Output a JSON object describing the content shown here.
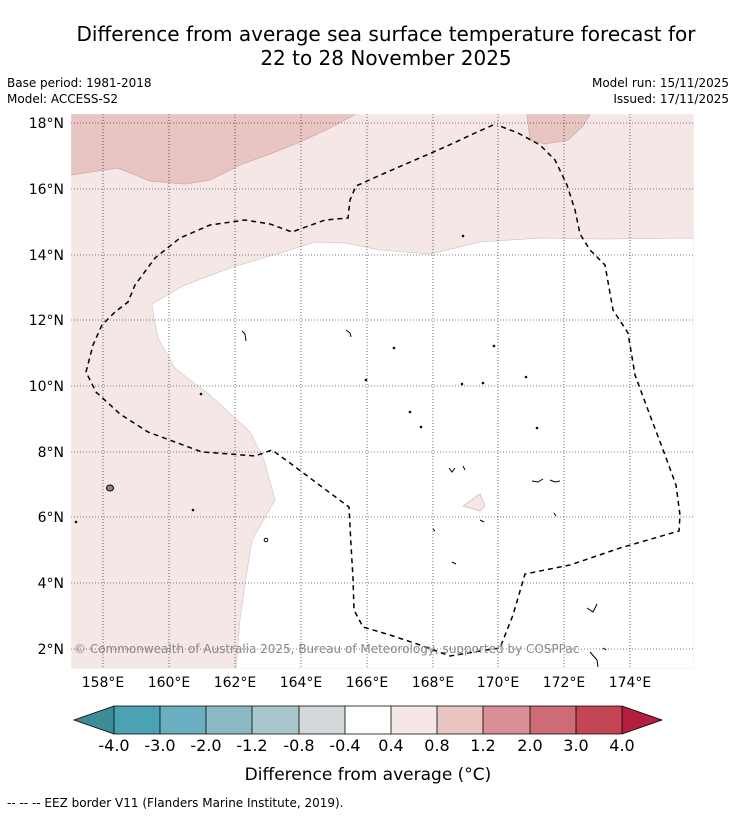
{
  "title_line1": "Difference from average sea surface temperature forecast for",
  "title_line2": "22 to 28 November 2025",
  "base_period": "Base period: 1981-2018",
  "model": "Model: ACCESS-S2",
  "model_run": "Model run: 15/11/2025",
  "issued": "Issued: 17/11/2025",
  "lat_labels": [
    "18°N",
    "16°N",
    "14°N",
    "12°N",
    "10°N",
    "8°N",
    "6°N",
    "4°N",
    "2°N"
  ],
  "lon_labels": [
    "158°E",
    "160°E",
    "162°E",
    "164°E",
    "166°E",
    "168°E",
    "170°E",
    "172°E",
    "174°E"
  ],
  "copyright": "© Commonwealth of Australia 2025, Bureau of Meteorology, supported by COSPPac",
  "colorbar": {
    "ticks": [
      "-4.0",
      "-3.0",
      "-2.0",
      "-1.2",
      "-0.8",
      "-0.4",
      "0.4",
      "0.8",
      "1.2",
      "2.0",
      "3.0",
      "4.0"
    ],
    "colors": [
      "#3f8c99",
      "#4aa3b4",
      "#6aafbf",
      "#8db9c5",
      "#a8c6cb",
      "#d3d8da",
      "#ffffff",
      "#f4e7e6",
      "#e8c5c2",
      "#d98f98",
      "#cd6b76",
      "#c44656",
      "#b2203f"
    ],
    "title": "Difference from average (°C)"
  },
  "footer_legend": "--  --  -- EEZ border V11 (Flanders Marine Institute, 2019)."
}
